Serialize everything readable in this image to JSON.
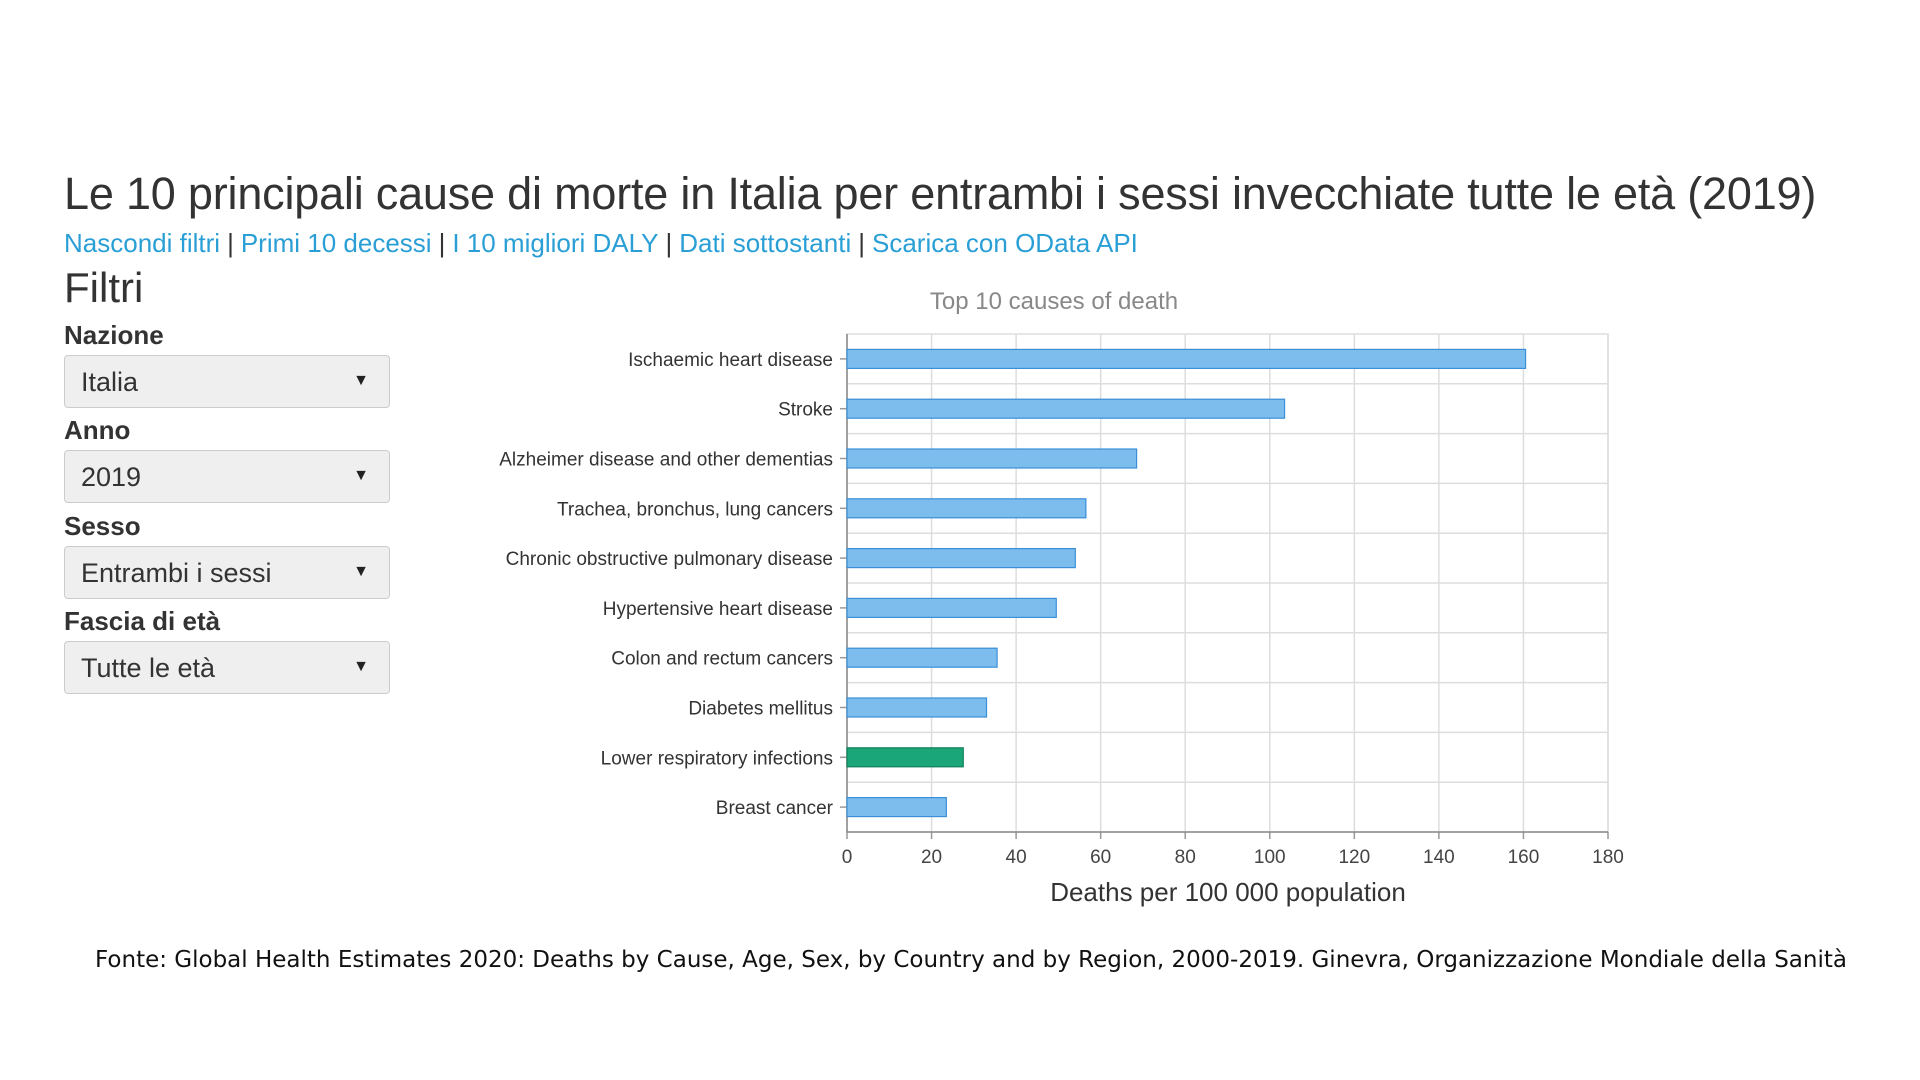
{
  "page": {
    "title": "Le 10 principali cause di morte in Italia per entrambi i sessi invecchiate tutte le età (2019)"
  },
  "nav": {
    "links": [
      "Nascondi filtri",
      "Primi 10 decessi",
      "I 10 migliori DALY",
      "Dati sottostanti",
      "Scarica con OData API"
    ],
    "separator": "|"
  },
  "filters": {
    "heading": "Filtri",
    "nation": {
      "label": "Nazione",
      "value": "Italia"
    },
    "year": {
      "label": "Anno",
      "value": "2019"
    },
    "sex": {
      "label": "Sesso",
      "value": "Entrambi i sessi"
    },
    "age": {
      "label": "Fascia di età",
      "value": "Tutte le età"
    }
  },
  "colors": {
    "bar": "#7cbdee",
    "bar_border": "#3a8fd6",
    "highlight_bar": "#1aa678",
    "highlight_border": "#13805c",
    "link": "#2a9fd6",
    "grid": "#dddddd"
  },
  "chart_data": {
    "type": "bar",
    "orientation": "horizontal",
    "title": "Top 10 causes of death",
    "xlabel": "Deaths per 100 000 population",
    "ylabel": "",
    "xlim": [
      0,
      180
    ],
    "xticks": [
      0,
      20,
      40,
      60,
      80,
      100,
      120,
      140,
      160,
      180
    ],
    "grid": true,
    "categories": [
      "Ischaemic heart disease",
      "Stroke",
      "Alzheimer disease and other dementias",
      "Trachea, bronchus, lung cancers",
      "Chronic obstructive pulmonary disease",
      "Hypertensive heart disease",
      "Colon and rectum cancers",
      "Diabetes mellitus",
      "Lower respiratory infections",
      "Breast cancer"
    ],
    "values": [
      160.5,
      103.5,
      68.5,
      56.5,
      54,
      49.5,
      35.5,
      33,
      27.5,
      23.5
    ],
    "highlighted": [
      "Lower respiratory infections"
    ]
  },
  "source": {
    "text": "Fonte: Global Health Estimates 2020: Deaths by Cause, Age, Sex, by Country and by Region, 2000-2019. Ginevra, Organizzazione Mondiale della Sanità"
  }
}
